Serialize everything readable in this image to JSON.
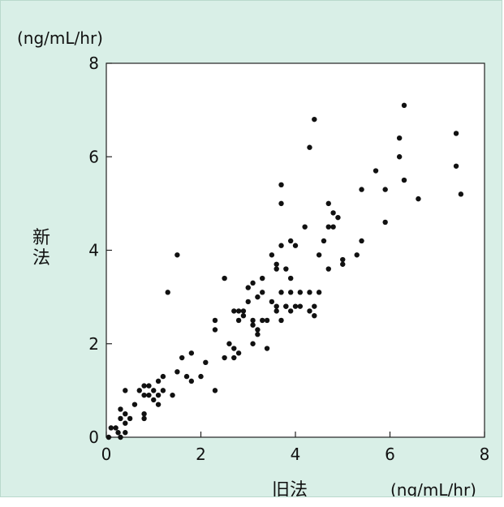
{
  "chart_data": {
    "type": "scatter",
    "title": "",
    "xlabel": "旧法",
    "ylabel": "新法",
    "x_unit": "(ng/mL/hr)",
    "y_unit": "(ng/mL/hr)",
    "xlim": [
      0,
      8
    ],
    "ylim": [
      0,
      8
    ],
    "x_ticks": [
      "0",
      "2",
      "4",
      "6",
      "8"
    ],
    "y_ticks": [
      "0",
      "2",
      "4",
      "6",
      "8"
    ],
    "grid": false,
    "colors": {
      "point": "#111111",
      "panel": "#d9efe7",
      "plot": "#ffffff"
    },
    "series": [
      {
        "points": [
          [
            0.05,
            0.0
          ],
          [
            0.1,
            0.2
          ],
          [
            0.2,
            0.2
          ],
          [
            0.25,
            0.1
          ],
          [
            0.3,
            0.0
          ],
          [
            0.3,
            0.4
          ],
          [
            0.3,
            0.6
          ],
          [
            0.4,
            0.1
          ],
          [
            0.4,
            0.3
          ],
          [
            0.4,
            0.5
          ],
          [
            0.4,
            1.0
          ],
          [
            0.5,
            0.4
          ],
          [
            0.6,
            0.7
          ],
          [
            0.7,
            1.0
          ],
          [
            0.8,
            0.4
          ],
          [
            0.8,
            0.5
          ],
          [
            0.8,
            0.9
          ],
          [
            0.8,
            1.1
          ],
          [
            0.9,
            0.9
          ],
          [
            0.9,
            1.1
          ],
          [
            1.0,
            1.0
          ],
          [
            1.0,
            0.8
          ],
          [
            1.1,
            0.7
          ],
          [
            1.1,
            1.2
          ],
          [
            1.1,
            0.9
          ],
          [
            1.2,
            1.3
          ],
          [
            1.2,
            1.0
          ],
          [
            1.3,
            3.1
          ],
          [
            1.4,
            0.9
          ],
          [
            1.5,
            3.9
          ],
          [
            1.5,
            1.4
          ],
          [
            1.6,
            1.7
          ],
          [
            1.7,
            1.3
          ],
          [
            1.8,
            1.8
          ],
          [
            1.8,
            1.2
          ],
          [
            2.0,
            1.3
          ],
          [
            2.1,
            1.6
          ],
          [
            2.3,
            1.0
          ],
          [
            2.3,
            2.3
          ],
          [
            2.3,
            2.5
          ],
          [
            2.5,
            3.4
          ],
          [
            2.5,
            1.7
          ],
          [
            2.6,
            2.0
          ],
          [
            2.7,
            1.7
          ],
          [
            2.7,
            1.9
          ],
          [
            2.7,
            2.7
          ],
          [
            2.8,
            2.7
          ],
          [
            2.8,
            1.8
          ],
          [
            2.8,
            2.5
          ],
          [
            2.9,
            2.7
          ],
          [
            2.9,
            2.6
          ],
          [
            3.0,
            2.9
          ],
          [
            3.0,
            3.2
          ],
          [
            3.1,
            2.0
          ],
          [
            3.1,
            2.4
          ],
          [
            3.1,
            2.5
          ],
          [
            3.1,
            3.3
          ],
          [
            3.2,
            3.0
          ],
          [
            3.2,
            2.2
          ],
          [
            3.2,
            2.3
          ],
          [
            3.3,
            2.5
          ],
          [
            3.3,
            3.4
          ],
          [
            3.3,
            3.1
          ],
          [
            3.4,
            1.9
          ],
          [
            3.4,
            2.5
          ],
          [
            3.5,
            3.9
          ],
          [
            3.5,
            2.9
          ],
          [
            3.6,
            2.7
          ],
          [
            3.6,
            3.7
          ],
          [
            3.6,
            2.8
          ],
          [
            3.6,
            3.6
          ],
          [
            3.7,
            5.4
          ],
          [
            3.7,
            5.0
          ],
          [
            3.7,
            4.1
          ],
          [
            3.7,
            2.5
          ],
          [
            3.7,
            3.1
          ],
          [
            3.8,
            2.8
          ],
          [
            3.8,
            3.6
          ],
          [
            3.8,
            2.8
          ],
          [
            3.9,
            4.2
          ],
          [
            3.9,
            3.1
          ],
          [
            3.9,
            3.4
          ],
          [
            3.9,
            2.7
          ],
          [
            4.0,
            2.8
          ],
          [
            4.0,
            4.1
          ],
          [
            4.1,
            3.1
          ],
          [
            4.1,
            2.8
          ],
          [
            4.2,
            4.5
          ],
          [
            4.3,
            6.2
          ],
          [
            4.3,
            3.1
          ],
          [
            4.3,
            2.7
          ],
          [
            4.4,
            6.8
          ],
          [
            4.4,
            2.6
          ],
          [
            4.4,
            2.8
          ],
          [
            4.5,
            3.1
          ],
          [
            4.5,
            3.9
          ],
          [
            4.6,
            4.2
          ],
          [
            4.7,
            3.6
          ],
          [
            4.7,
            4.5
          ],
          [
            4.7,
            5.0
          ],
          [
            4.8,
            4.8
          ],
          [
            4.8,
            4.5
          ],
          [
            4.9,
            4.7
          ],
          [
            5.0,
            3.8
          ],
          [
            5.0,
            3.7
          ],
          [
            5.3,
            3.9
          ],
          [
            5.4,
            4.2
          ],
          [
            5.4,
            5.3
          ],
          [
            5.7,
            5.7
          ],
          [
            5.9,
            5.3
          ],
          [
            5.9,
            4.6
          ],
          [
            6.2,
            6.4
          ],
          [
            6.2,
            6.0
          ],
          [
            6.3,
            7.1
          ],
          [
            6.3,
            5.5
          ],
          [
            6.6,
            5.1
          ],
          [
            7.4,
            6.5
          ],
          [
            7.4,
            5.8
          ],
          [
            7.5,
            5.2
          ]
        ]
      }
    ]
  }
}
